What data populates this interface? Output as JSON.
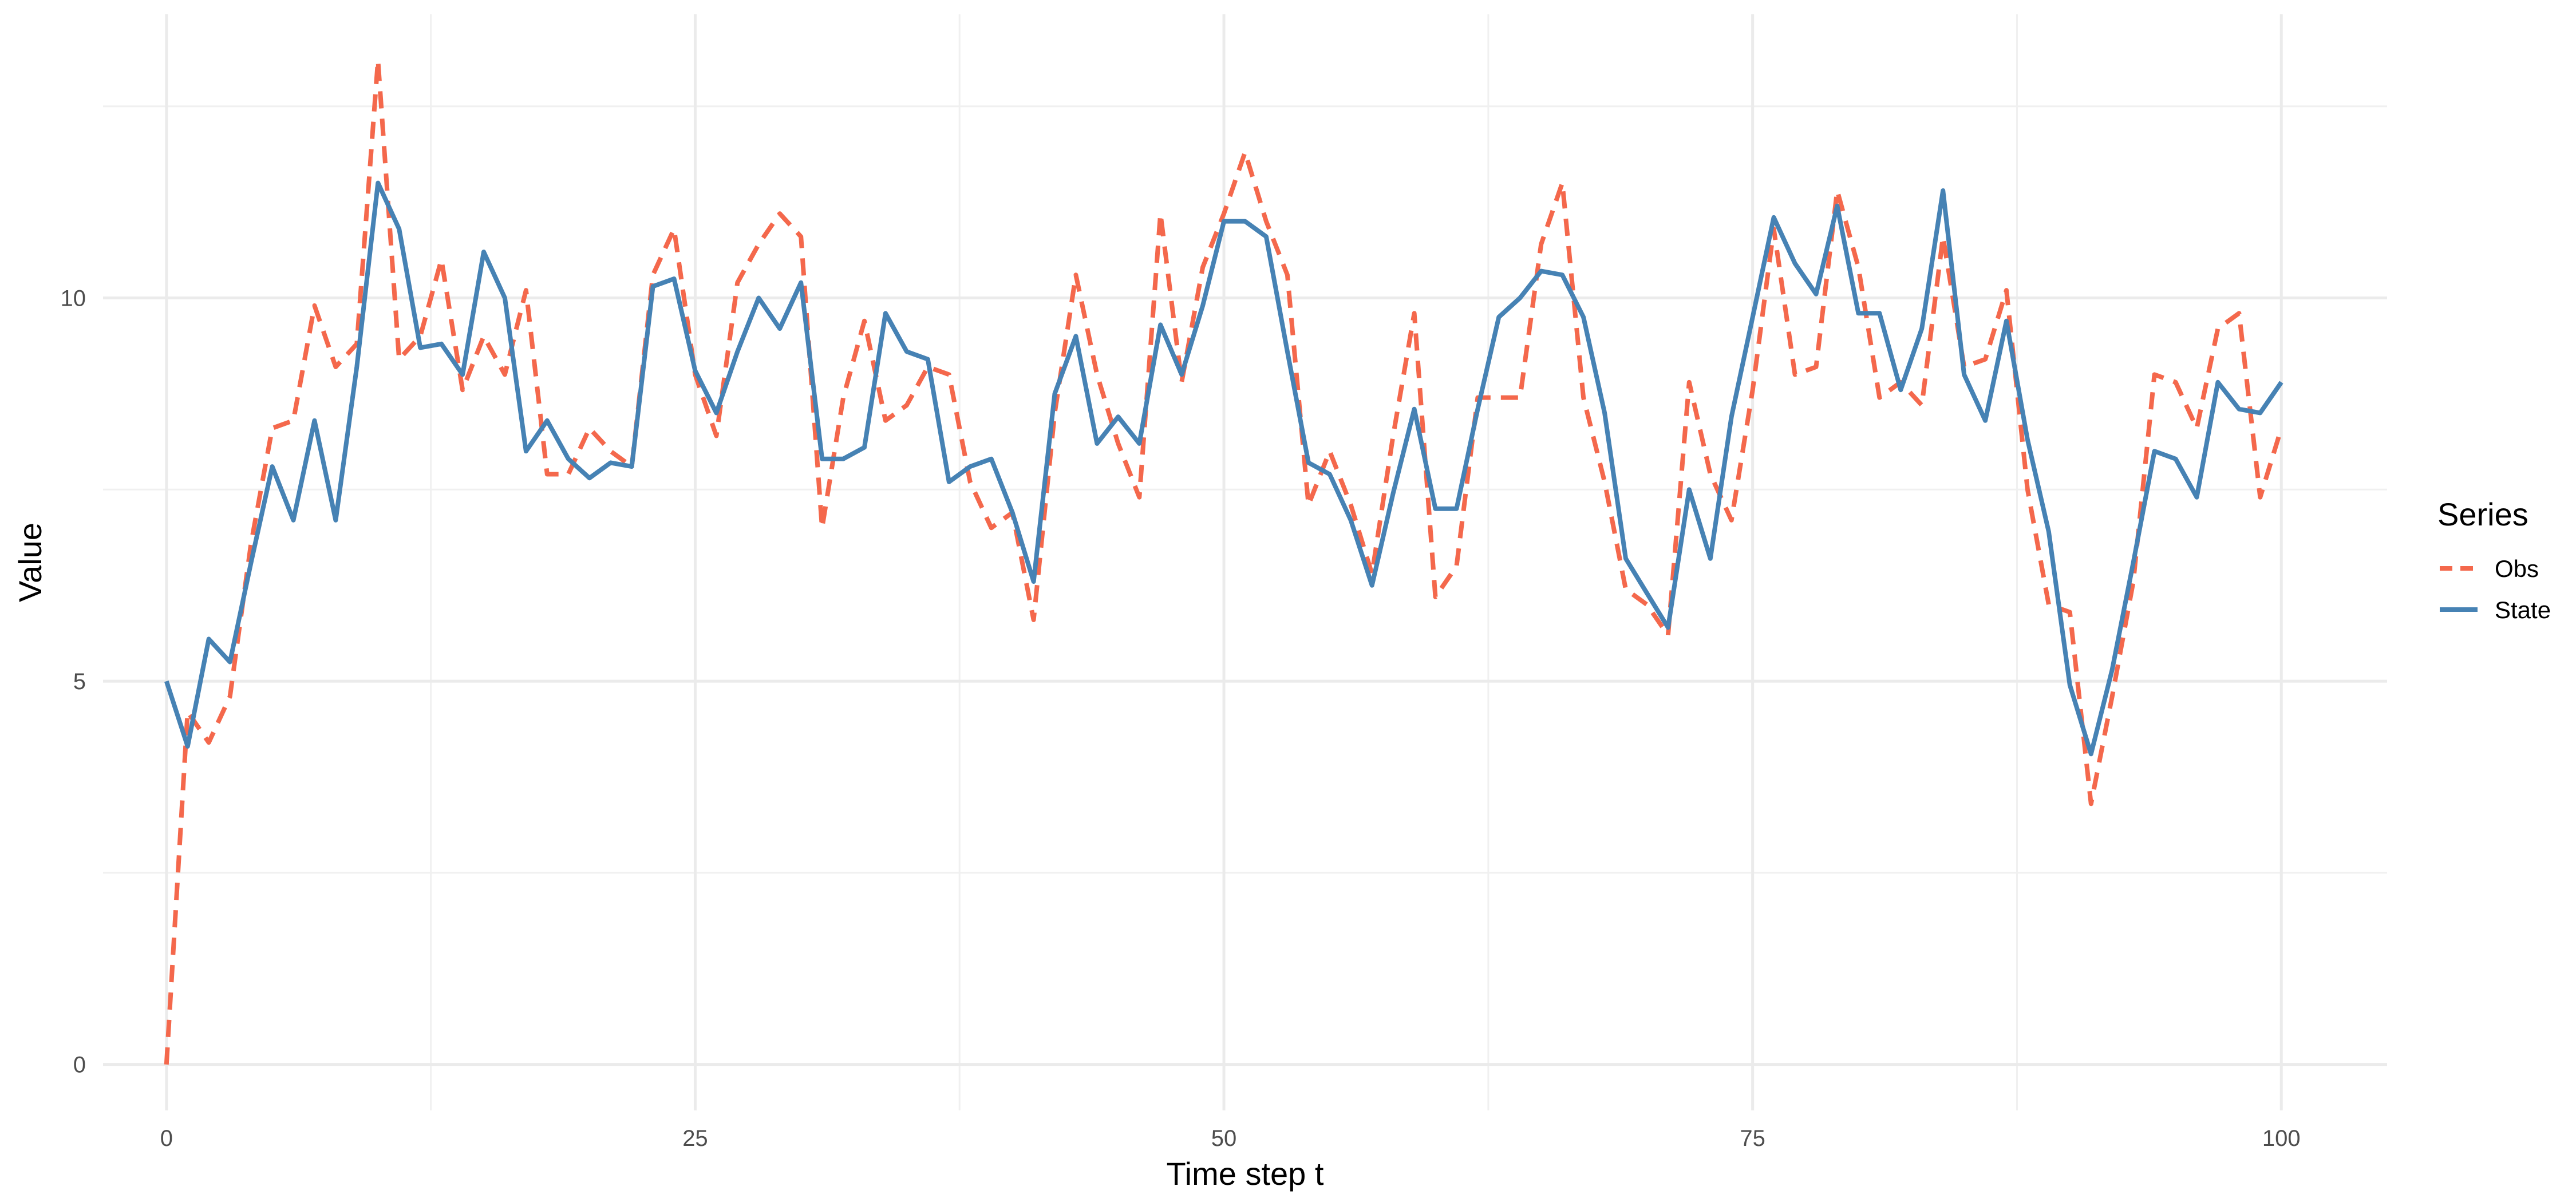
{
  "chart_data": {
    "type": "line",
    "title": "",
    "xlabel": "Time step t",
    "ylabel": "Value",
    "xlim": [
      -3,
      105
    ],
    "ylim": [
      -0.6,
      13.7
    ],
    "x_ticks": [
      0,
      25,
      50,
      75,
      100
    ],
    "y_ticks": [
      0,
      5,
      10
    ],
    "x_tick_labels": [
      "0",
      "25",
      "50",
      "75",
      "100"
    ],
    "y_tick_labels": [
      "0",
      "5",
      "10"
    ],
    "grid": true,
    "legend": {
      "title": "Series",
      "position": "right"
    },
    "x": [
      0,
      1,
      2,
      3,
      4,
      5,
      6,
      7,
      8,
      9,
      10,
      11,
      12,
      13,
      14,
      15,
      16,
      17,
      18,
      19,
      20,
      21,
      22,
      23,
      24,
      25,
      26,
      27,
      28,
      29,
      30,
      31,
      32,
      33,
      34,
      35,
      36,
      37,
      38,
      39,
      40,
      41,
      42,
      43,
      44,
      45,
      46,
      47,
      48,
      49,
      50,
      51,
      52,
      53,
      54,
      55,
      56,
      57,
      58,
      59,
      60,
      61,
      62,
      63,
      64,
      65,
      66,
      67,
      68,
      69,
      70,
      71,
      72,
      73,
      74,
      75,
      76,
      77,
      78,
      79,
      80,
      81,
      82,
      83,
      84,
      85,
      86,
      87,
      88,
      89,
      90,
      91,
      92,
      93,
      94,
      95,
      96,
      97,
      98,
      99,
      100
    ],
    "series": [
      {
        "name": "Obs",
        "color": "#f4684c",
        "dash": "dashed",
        "values": [
          0.0,
          4.6,
          4.2,
          4.8,
          6.8,
          8.3,
          8.4,
          9.9,
          9.1,
          9.4,
          13.1,
          9.2,
          9.5,
          10.5,
          8.8,
          9.5,
          9.0,
          10.1,
          7.7,
          7.7,
          8.3,
          8.0,
          7.8,
          10.3,
          10.9,
          9.0,
          8.2,
          10.2,
          10.7,
          11.1,
          10.8,
          7.0,
          8.7,
          9.7,
          8.4,
          8.6,
          9.1,
          9.0,
          7.6,
          7.0,
          7.2,
          5.8,
          8.5,
          10.3,
          9.0,
          8.1,
          7.4,
          11.1,
          8.9,
          10.4,
          11.1,
          11.9,
          11.0,
          10.3,
          7.3,
          8.0,
          7.3,
          6.4,
          8.2,
          9.8,
          6.1,
          6.5,
          8.7,
          8.7,
          8.7,
          10.7,
          11.5,
          8.7,
          7.6,
          6.2,
          6.0,
          5.6,
          8.9,
          7.7,
          7.1,
          8.8,
          10.9,
          9.0,
          9.1,
          11.4,
          10.4,
          8.7,
          8.9,
          8.6,
          10.8,
          9.1,
          9.2,
          10.1,
          7.5,
          6.0,
          5.9,
          3.4,
          4.8,
          6.3,
          9.0,
          8.9,
          8.3,
          9.6,
          9.8,
          7.4,
          8.3
        ]
      },
      {
        "name": "State",
        "color": "#4682b4",
        "dash": "solid",
        "values": [
          5.0,
          4.15,
          5.55,
          5.25,
          6.55,
          7.8,
          7.1,
          8.4,
          7.1,
          9.1,
          11.5,
          10.9,
          9.35,
          9.4,
          9.0,
          10.6,
          10.0,
          8.0,
          8.4,
          7.9,
          7.65,
          7.85,
          7.8,
          10.15,
          10.25,
          9.05,
          8.5,
          9.3,
          10.0,
          9.6,
          10.2,
          7.9,
          7.9,
          8.05,
          9.8,
          9.3,
          9.2,
          7.6,
          7.8,
          7.9,
          7.2,
          6.3,
          8.75,
          9.5,
          8.1,
          8.45,
          8.1,
          9.65,
          9.0,
          9.9,
          11.0,
          11.0,
          10.8,
          9.3,
          7.85,
          7.7,
          7.1,
          6.25,
          7.45,
          8.55,
          7.25,
          7.25,
          8.55,
          9.75,
          10.0,
          10.35,
          10.3,
          9.75,
          8.5,
          6.6,
          6.15,
          5.7,
          7.5,
          6.6,
          8.45,
          9.75,
          11.05,
          10.45,
          10.05,
          11.2,
          9.8,
          9.8,
          8.8,
          9.6,
          11.4,
          9.0,
          8.4,
          9.7,
          8.15,
          6.95,
          4.95,
          4.05,
          5.15,
          6.55,
          8.0,
          7.9,
          7.4,
          8.9,
          8.55,
          8.5,
          8.9
        ]
      }
    ]
  }
}
